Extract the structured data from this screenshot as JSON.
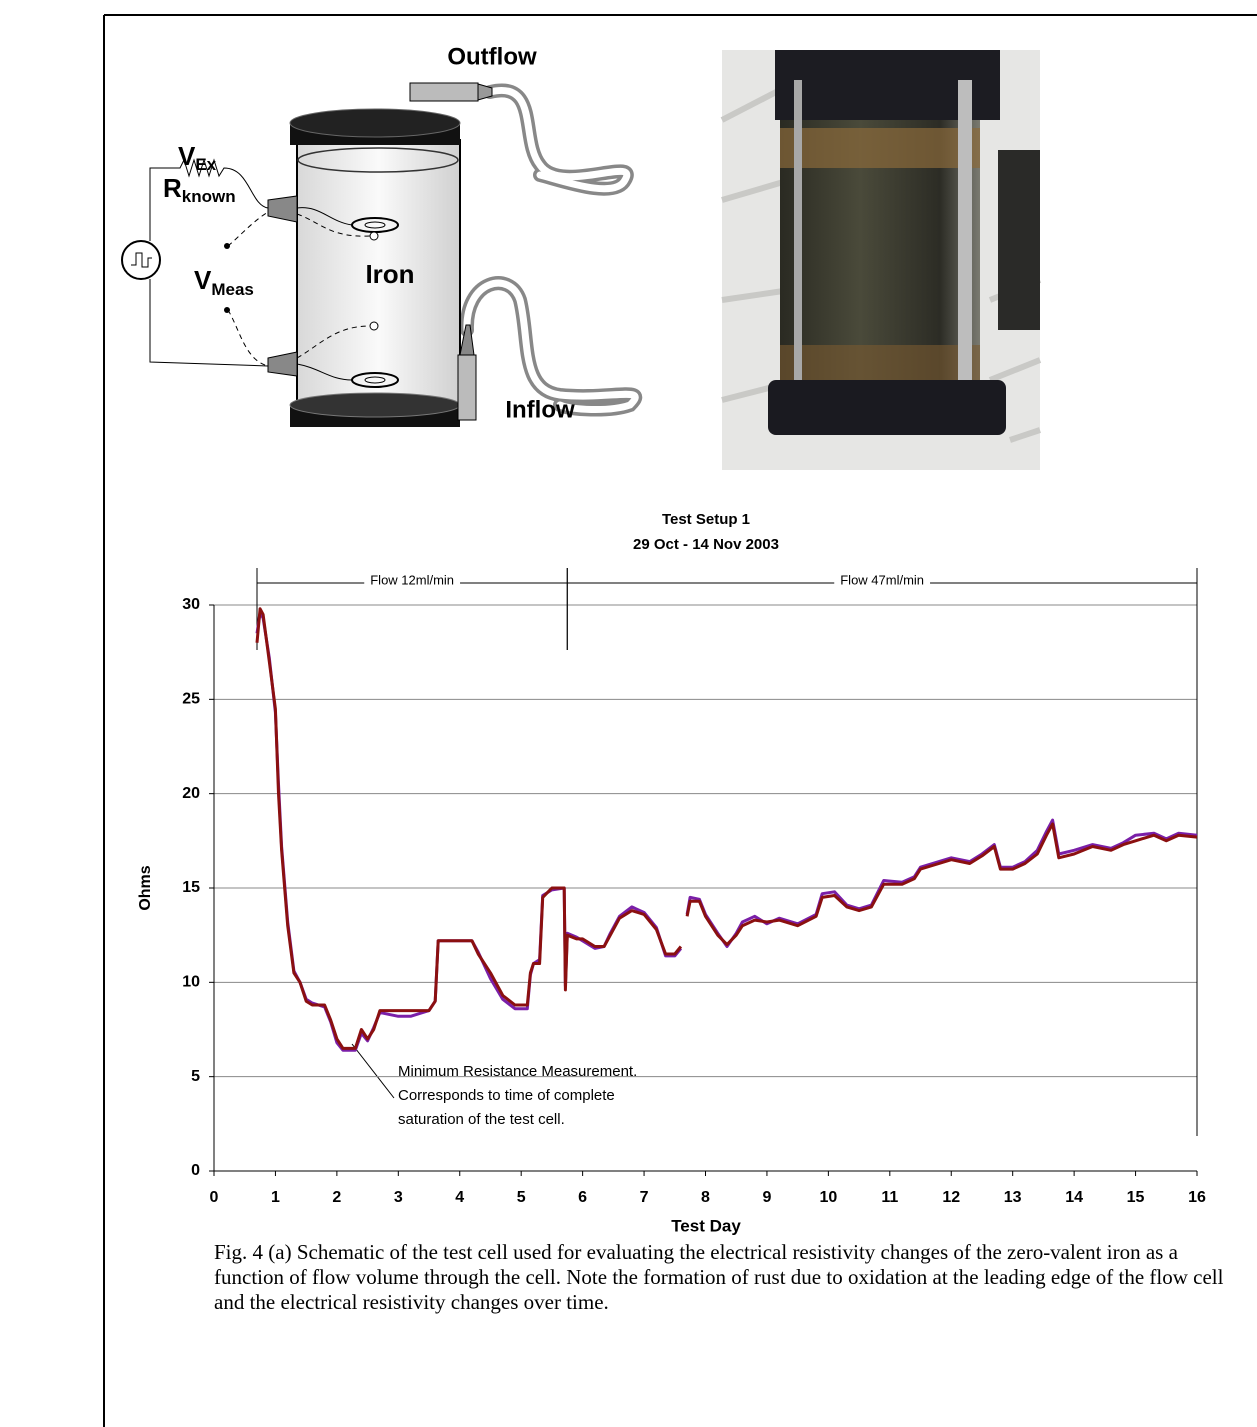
{
  "schematic": {
    "outflow": "Outflow",
    "inflow": "Inflow",
    "iron": "Iron",
    "v_ex": {
      "symbol": "V",
      "subscript": "Ex"
    },
    "r_known": {
      "symbol": "R",
      "subscript": "known"
    },
    "v_meas": {
      "symbol": "V",
      "subscript": "Meas"
    }
  },
  "chart_data": {
    "type": "line",
    "title": "Test Setup 1",
    "subtitle": "29 Oct - 14 Nov 2003",
    "x_label": "Test Day",
    "y_label": "Ohms",
    "annotations": [
      {
        "text": "Flow 12ml/min",
        "x_start": 0.7,
        "x_end": 5.75
      },
      {
        "text": "Flow 47ml/min",
        "x_start": 5.75,
        "x_end": 16
      }
    ],
    "callout": [
      "Minimum Resistance Measurement.",
      "Corresponds to time of complete",
      "saturation of the test cell."
    ],
    "x": [
      0.7,
      0.75,
      0.8,
      0.9,
      1.0,
      1.05,
      1.1,
      1.2,
      1.3,
      1.4,
      1.5,
      1.6,
      1.8,
      1.9,
      2.0,
      2.1,
      2.3,
      2.4,
      2.5,
      2.6,
      2.7,
      3.0,
      3.2,
      3.5,
      3.6,
      3.65,
      4.2,
      4.3,
      4.5,
      4.7,
      4.9,
      5.1,
      5.15,
      5.2,
      5.3,
      5.35,
      5.5,
      5.7,
      5.72,
      5.75,
      5.9,
      6.0,
      6.2,
      6.35,
      6.45,
      6.6,
      6.8,
      7.0,
      7.2,
      7.35,
      7.5,
      7.6,
      7.65,
      7.7,
      7.75,
      7.9,
      8.0,
      8.2,
      8.35,
      8.5,
      8.6,
      8.8,
      9.0,
      9.2,
      9.5,
      9.8,
      9.9,
      10.1,
      10.3,
      10.5,
      10.7,
      10.9,
      11.2,
      11.4,
      11.5,
      11.8,
      12.0,
      12.3,
      12.5,
      12.7,
      12.8,
      13.0,
      13.2,
      13.4,
      13.55,
      13.65,
      13.75,
      14.0,
      14.3,
      14.6,
      14.8,
      15.0,
      15.3,
      15.5,
      15.7,
      16.0
    ],
    "series": [
      {
        "color": "#7a1fa8",
        "values": [
          28.5,
          29.6,
          29.3,
          27.2,
          24.3,
          20.5,
          17.2,
          13.2,
          10.6,
          10,
          9.1,
          8.9,
          8.7,
          7.9,
          6.8,
          6.4,
          6.4,
          7.3,
          6.9,
          7.6,
          8.4,
          8.2,
          8.2,
          8.5,
          9,
          12.2,
          12.2,
          11.6,
          10.2,
          9.1,
          8.6,
          8.6,
          10.4,
          11,
          11.2,
          14.6,
          14.9,
          15,
          9.8,
          12.6,
          12.4,
          12.2,
          11.8,
          11.9,
          12.6,
          13.5,
          14,
          13.7,
          12.9,
          11.4,
          11.4,
          11.8,
          null,
          13.6,
          14.5,
          14.4,
          13.6,
          12.6,
          11.9,
          12.6,
          13.2,
          13.5,
          13.1,
          13.4,
          13.1,
          13.6,
          14.7,
          14.8,
          14.1,
          13.9,
          14.1,
          15.4,
          15.3,
          15.6,
          16.1,
          16.4,
          16.6,
          16.4,
          16.8,
          17.3,
          16.1,
          16.1,
          16.4,
          17,
          18,
          18.6,
          16.8,
          17,
          17.3,
          17.1,
          17.4,
          17.8,
          17.9,
          17.6,
          17.9,
          17.8
        ]
      },
      {
        "color": "#8b1010",
        "values": [
          28,
          29.8,
          29.5,
          27,
          24.5,
          20,
          17,
          13,
          10.5,
          10,
          9,
          8.8,
          8.8,
          8,
          7,
          6.5,
          6.5,
          7.5,
          7,
          7.5,
          8.5,
          8.5,
          8.5,
          8.5,
          9,
          12.2,
          12.2,
          11.5,
          10.5,
          9.3,
          8.8,
          8.8,
          10.5,
          11,
          11,
          14.5,
          15,
          15,
          9.6,
          12.5,
          12.3,
          12.3,
          11.9,
          11.9,
          12.5,
          13.4,
          13.8,
          13.6,
          12.8,
          11.5,
          11.5,
          11.9,
          null,
          13.5,
          14.3,
          14.3,
          13.5,
          12.5,
          12,
          12.5,
          13,
          13.3,
          13.2,
          13.3,
          13,
          13.5,
          14.5,
          14.6,
          14,
          13.8,
          14,
          15.2,
          15.2,
          15.5,
          16,
          16.3,
          16.5,
          16.3,
          16.7,
          17.2,
          16,
          16,
          16.3,
          16.8,
          17.8,
          18.4,
          16.6,
          16.8,
          17.2,
          17,
          17.3,
          17.5,
          17.8,
          17.5,
          17.8,
          17.7
        ]
      }
    ],
    "xlim": [
      0,
      16
    ],
    "xticks": [
      0,
      1,
      2,
      3,
      4,
      5,
      6,
      7,
      8,
      9,
      10,
      11,
      12,
      13,
      14,
      15,
      16
    ],
    "ylim": [
      0,
      30
    ],
    "yticks": [
      0,
      5,
      10,
      15,
      20,
      25,
      30
    ],
    "grid": true
  },
  "caption": "Fig. 4  (a) Schematic of the test cell used for evaluating the electrical resistivity changes of the zero-valent iron as a function of flow volume through the cell.  Note the formation of rust due to oxidation at the leading edge of the flow cell and the electrical resistivity changes over time."
}
